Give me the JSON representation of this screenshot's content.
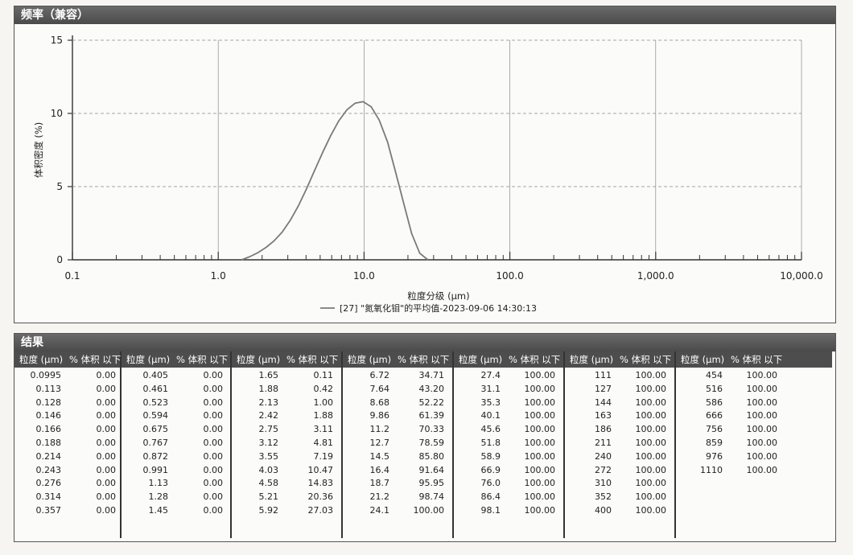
{
  "chart_panel": {
    "title": "频率（兼容）"
  },
  "results_panel": {
    "title": "结果"
  },
  "colors": {
    "header_bg": "#4d4d4d",
    "curve": "#7a7a7a",
    "grid": "#8a8a8a"
  },
  "chart_data": {
    "type": "line",
    "title": "频率（兼容）",
    "xlabel": "粒度分级 (μm)",
    "ylabel": "体积密度 (%)",
    "xscale": "log",
    "xlim": [
      0.1,
      10000
    ],
    "ylim": [
      0,
      15
    ],
    "xticks": [
      "0.1",
      "1.0",
      "10.0",
      "100.0",
      "1,000.0",
      "10,000.0"
    ],
    "yticks": [
      "0",
      "5",
      "10",
      "15"
    ],
    "grid": true,
    "legend": "bottom-center",
    "series": [
      {
        "name": "[27] \"氮氧化钼\"的平均值-2023-09-06 14:30:13",
        "x": [
          1.45,
          1.65,
          1.88,
          2.13,
          2.42,
          2.75,
          3.12,
          3.55,
          4.03,
          4.58,
          5.21,
          5.92,
          6.72,
          7.64,
          8.68,
          9.86,
          11.2,
          12.7,
          14.5,
          16.4,
          18.7,
          21.2,
          24.1,
          27.4
        ],
        "y": [
          0.0,
          0.22,
          0.5,
          0.85,
          1.3,
          1.9,
          2.7,
          3.7,
          4.85,
          6.1,
          7.35,
          8.5,
          9.5,
          10.25,
          10.7,
          10.8,
          10.45,
          9.55,
          8.05,
          6.05,
          3.85,
          1.8,
          0.45,
          0.0
        ]
      }
    ]
  },
  "results": {
    "header_size": "粒度 (μm)",
    "header_vol": "% 体积 以下",
    "columns": [
      {
        "rows": [
          [
            "0.0995",
            "0.00"
          ],
          [
            "0.113",
            "0.00"
          ],
          [
            "0.128",
            "0.00"
          ],
          [
            "0.146",
            "0.00"
          ],
          [
            "0.166",
            "0.00"
          ],
          [
            "0.188",
            "0.00"
          ],
          [
            "0.214",
            "0.00"
          ],
          [
            "0.243",
            "0.00"
          ],
          [
            "0.276",
            "0.00"
          ],
          [
            "0.314",
            "0.00"
          ],
          [
            "0.357",
            "0.00"
          ]
        ]
      },
      {
        "rows": [
          [
            "0.405",
            "0.00"
          ],
          [
            "0.461",
            "0.00"
          ],
          [
            "0.523",
            "0.00"
          ],
          [
            "0.594",
            "0.00"
          ],
          [
            "0.675",
            "0.00"
          ],
          [
            "0.767",
            "0.00"
          ],
          [
            "0.872",
            "0.00"
          ],
          [
            "0.991",
            "0.00"
          ],
          [
            "1.13",
            "0.00"
          ],
          [
            "1.28",
            "0.00"
          ],
          [
            "1.45",
            "0.00"
          ]
        ]
      },
      {
        "rows": [
          [
            "1.65",
            "0.11"
          ],
          [
            "1.88",
            "0.42"
          ],
          [
            "2.13",
            "1.00"
          ],
          [
            "2.42",
            "1.88"
          ],
          [
            "2.75",
            "3.11"
          ],
          [
            "3.12",
            "4.81"
          ],
          [
            "3.55",
            "7.19"
          ],
          [
            "4.03",
            "10.47"
          ],
          [
            "4.58",
            "14.83"
          ],
          [
            "5.21",
            "20.36"
          ],
          [
            "5.92",
            "27.03"
          ]
        ]
      },
      {
        "rows": [
          [
            "6.72",
            "34.71"
          ],
          [
            "7.64",
            "43.20"
          ],
          [
            "8.68",
            "52.22"
          ],
          [
            "9.86",
            "61.39"
          ],
          [
            "11.2",
            "70.33"
          ],
          [
            "12.7",
            "78.59"
          ],
          [
            "14.5",
            "85.80"
          ],
          [
            "16.4",
            "91.64"
          ],
          [
            "18.7",
            "95.95"
          ],
          [
            "21.2",
            "98.74"
          ],
          [
            "24.1",
            "100.00"
          ]
        ]
      },
      {
        "rows": [
          [
            "27.4",
            "100.00"
          ],
          [
            "31.1",
            "100.00"
          ],
          [
            "35.3",
            "100.00"
          ],
          [
            "40.1",
            "100.00"
          ],
          [
            "45.6",
            "100.00"
          ],
          [
            "51.8",
            "100.00"
          ],
          [
            "58.9",
            "100.00"
          ],
          [
            "66.9",
            "100.00"
          ],
          [
            "76.0",
            "100.00"
          ],
          [
            "86.4",
            "100.00"
          ],
          [
            "98.1",
            "100.00"
          ]
        ]
      },
      {
        "rows": [
          [
            "111",
            "100.00"
          ],
          [
            "127",
            "100.00"
          ],
          [
            "144",
            "100.00"
          ],
          [
            "163",
            "100.00"
          ],
          [
            "186",
            "100.00"
          ],
          [
            "211",
            "100.00"
          ],
          [
            "240",
            "100.00"
          ],
          [
            "272",
            "100.00"
          ],
          [
            "310",
            "100.00"
          ],
          [
            "352",
            "100.00"
          ],
          [
            "400",
            "100.00"
          ]
        ]
      },
      {
        "rows": [
          [
            "454",
            "100.00"
          ],
          [
            "516",
            "100.00"
          ],
          [
            "586",
            "100.00"
          ],
          [
            "666",
            "100.00"
          ],
          [
            "756",
            "100.00"
          ],
          [
            "859",
            "100.00"
          ],
          [
            "976",
            "100.00"
          ],
          [
            "1110",
            "100.00"
          ]
        ]
      }
    ]
  }
}
